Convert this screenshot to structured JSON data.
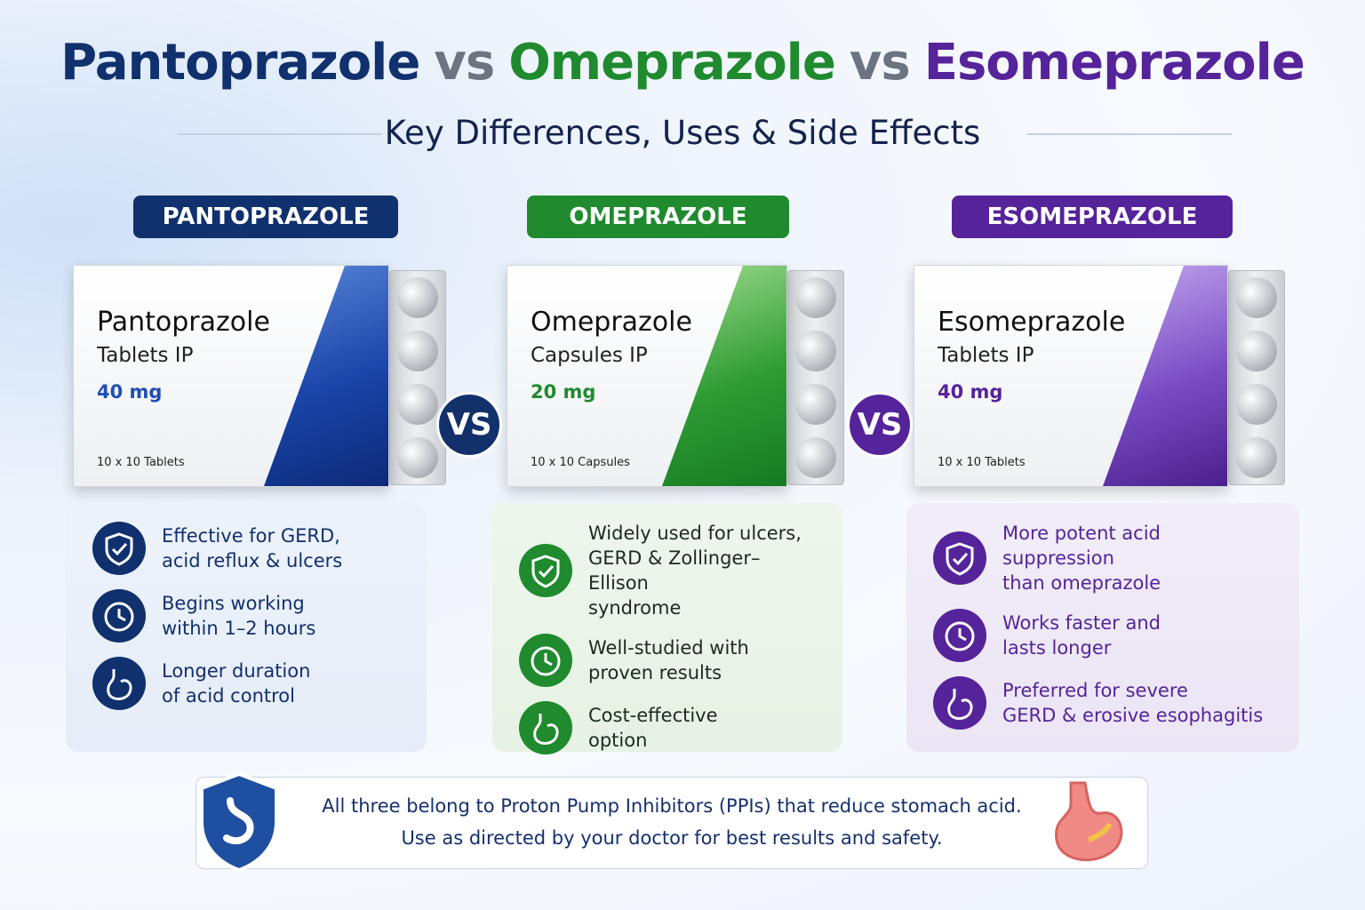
{
  "title": [
    "Pantoprazole",
    "vs",
    "Omeprazole",
    "vs",
    "Esomeprazole"
  ],
  "subtitle": "Key Differences, Uses & Side Effects",
  "vs_badges": [
    "VS",
    "VS"
  ],
  "drugs": [
    {
      "badge": "PANTOPRAZOLE",
      "name": "Pantoprazole",
      "form": "Tablets IP",
      "dose": "40 mg",
      "pack": "10 x 10 Tablets",
      "points": [
        [
          "Effective for GERD,",
          "acid reflux & ulcers"
        ],
        [
          "Begins working",
          "within 1–2 hours"
        ],
        [
          "Longer duration",
          "of acid control"
        ]
      ]
    },
    {
      "badge": "OMEPRAZOLE",
      "name": "Omeprazole",
      "form": "Capsules IP",
      "dose": "20 mg",
      "pack": "10 x 10 Capsules",
      "points": [
        [
          "Widely used for ulcers,",
          "GERD & Zollinger–Ellison",
          "syndrome"
        ],
        [
          "Well-studied with",
          "proven results"
        ],
        [
          "Cost-effective",
          "option"
        ]
      ]
    },
    {
      "badge": "ESOMEPRAZOLE",
      "name": "Esomeprazole",
      "form": "Tablets IP",
      "dose": "40 mg",
      "pack": "10 x 10 Tablets",
      "points": [
        [
          "More potent acid suppression",
          "than omeprazole"
        ],
        [
          "Works faster and",
          "lasts longer"
        ],
        [
          "Preferred for severe",
          "GERD & erosive esophagitis"
        ]
      ]
    }
  ],
  "footer": [
    "All three belong to Proton Pump Inhibitors (PPIs) that reduce stomach acid.",
    "Use as directed by your doctor for best results and safety."
  ]
}
